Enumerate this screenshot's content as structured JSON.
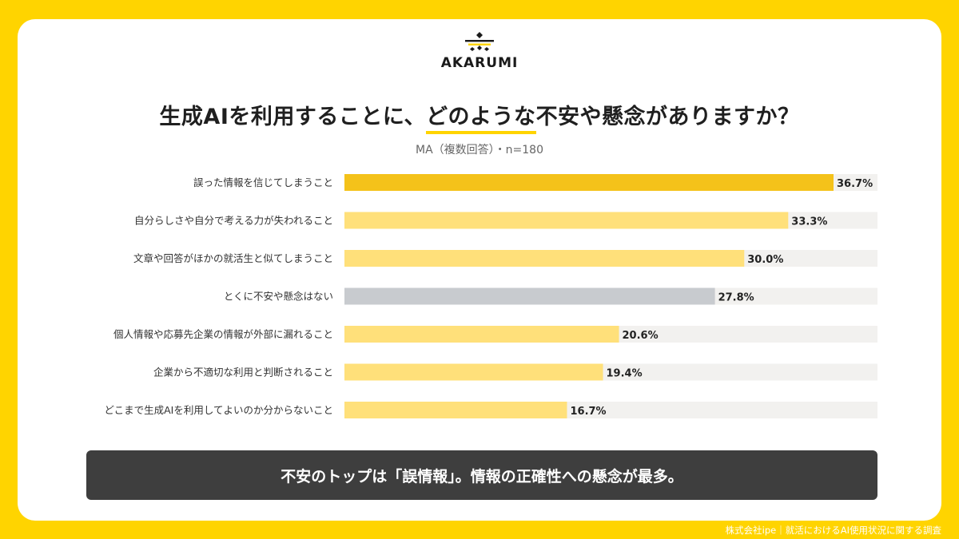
{
  "brand": {
    "name": "AKARUMI",
    "logo_icon": "akarumi-logo-icon"
  },
  "title": {
    "part1": "生成AIを利用することに、",
    "highlight": "どのような",
    "part2": "不安や懸念がありますか？"
  },
  "subtitle": "MA（複数回答）・n=180",
  "summary": "不安のトップは「誤情報」。情報の正確性への懸念が最多。",
  "credit": "株式会社ipe｜就活におけるAI使用状況に関する調査",
  "colors": {
    "top": "#F4C21A",
    "bar": "#FFE07A",
    "neutral": "#C8CBCF",
    "track": "#F2F1EF",
    "background": "#FFD400",
    "summary_bg": "#3E3E3E"
  },
  "chart_data": {
    "type": "bar",
    "orientation": "horizontal",
    "categories": [
      "誤った情報を信じてしまうこと",
      "自分らしさや自分で考える力が失われること",
      "文章や回答がほかの就活生と似てしまうこと",
      "とくに不安や懸念はない",
      "個人情報や応募先企業の情報が外部に漏れること",
      "企業から不適切な利用と判断されること",
      "どこまで生成AIを利用してよいのか分からないこと"
    ],
    "values": [
      36.7,
      33.3,
      30.0,
      27.8,
      20.6,
      19.4,
      16.7
    ],
    "value_labels": [
      "36.7%",
      "33.3%",
      "30.0%",
      "27.8%",
      "20.6%",
      "19.4%",
      "16.7%"
    ],
    "bar_color_keys": [
      "top",
      "bar",
      "bar",
      "neutral",
      "bar",
      "bar",
      "bar"
    ],
    "xlim": [
      0,
      36.7
    ],
    "grid": false
  }
}
